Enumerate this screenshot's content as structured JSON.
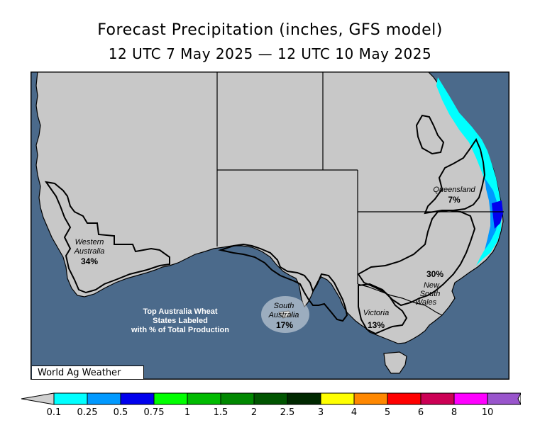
{
  "title": "Forecast Precipitation (inches, GFS model)",
  "subtitle": "12 UTC 7 May 2025 — 12 UTC 10 May 2025",
  "credit": "World Ag Weather",
  "note_lines": [
    "Top Australia Wheat",
    "States Labeled",
    "with % of Total Production"
  ],
  "states": [
    {
      "name_lines": [
        "Western",
        "Australia"
      ],
      "pct": "34%"
    },
    {
      "name_lines": [
        "South",
        "Australia"
      ],
      "pct": "17%"
    },
    {
      "name_lines": [
        "Queensland"
      ],
      "pct": "7%"
    },
    {
      "name_lines": [
        "New",
        "South",
        "Wales"
      ],
      "pct": "30%"
    },
    {
      "name_lines": [
        "Victoria"
      ],
      "pct": "13%"
    }
  ],
  "legend": {
    "tick_labels": [
      "0.1",
      "0.25",
      "0.5",
      "0.75",
      "1",
      "1.5",
      "2",
      "2.5",
      "3",
      "4",
      "5",
      "6",
      "8",
      "10"
    ],
    "colors": [
      "#00ffff",
      "#0099ff",
      "#0000ee",
      "#00ff00",
      "#00bb00",
      "#008800",
      "#005500",
      "#002800",
      "#ffff00",
      "#ff8800",
      "#ff0000",
      "#cc0055",
      "#ff00ff",
      "#9955cc"
    ],
    "below_color": "#d0d0d0",
    "above_color": "#ffffff"
  },
  "colors": {
    "ocean": "#4b6a8b",
    "land": "#c8c8c8"
  }
}
